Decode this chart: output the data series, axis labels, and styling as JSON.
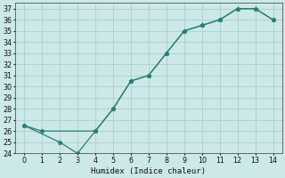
{
  "xlabel": "Humidex (Indice chaleur)",
  "line1_x": [
    0,
    1,
    4,
    5,
    6,
    7,
    8,
    9,
    10,
    11,
    12,
    13,
    14
  ],
  "line1_y": [
    26.5,
    26.0,
    26.0,
    28.0,
    30.5,
    31.0,
    33.0,
    35.0,
    35.5,
    36.0,
    37.0,
    37.0,
    36.0
  ],
  "line2_x": [
    0,
    2,
    3,
    4,
    5,
    6,
    7,
    8,
    9,
    10,
    11,
    12,
    13,
    14
  ],
  "line2_y": [
    26.5,
    25.0,
    24.0,
    26.0,
    28.0,
    30.5,
    31.0,
    33.0,
    35.0,
    35.5,
    36.0,
    37.0,
    37.0,
    36.0
  ],
  "line_color": "#2a7f6f",
  "bg_color": "#cce8e8",
  "grid_color": "#aacfcf",
  "xlim_min": -0.5,
  "xlim_max": 14.5,
  "ylim_min": 24,
  "ylim_max": 37.5,
  "xticks": [
    0,
    1,
    2,
    3,
    4,
    5,
    6,
    7,
    8,
    9,
    10,
    11,
    12,
    13,
    14
  ],
  "yticks": [
    24,
    25,
    26,
    27,
    28,
    29,
    30,
    31,
    32,
    33,
    34,
    35,
    36,
    37
  ]
}
